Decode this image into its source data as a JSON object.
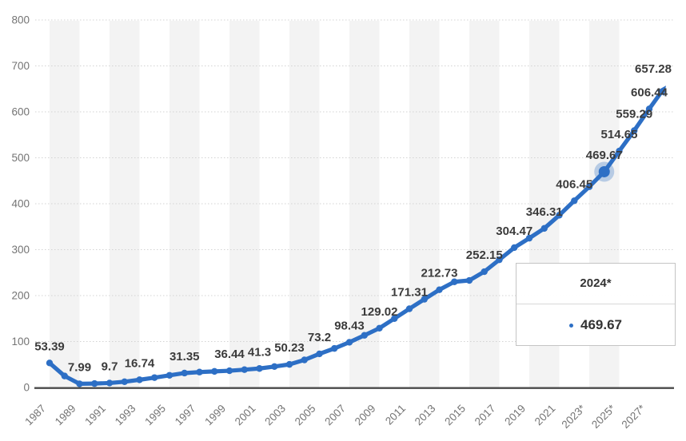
{
  "chart_data": {
    "type": "line",
    "title": "",
    "xlabel": "",
    "ylabel": "",
    "ylim": [
      0,
      800
    ],
    "y_tick_labels": [
      "0",
      "100",
      "200",
      "300",
      "400",
      "500",
      "600",
      "700",
      "800"
    ],
    "x_tick_labels": [
      "1987",
      "1989",
      "1991",
      "1993",
      "1995",
      "1997",
      "1999",
      "2001",
      "2003",
      "2005",
      "2007",
      "2009",
      "2011",
      "2013",
      "2015",
      "2017",
      "2019",
      "2021",
      "2023*",
      "2025*",
      "2027*"
    ],
    "x_tick_start_year": 1987,
    "x_tick_step": 2,
    "grid": "horizontal-dotted",
    "background_bands": true,
    "legend_position": "none",
    "series": [
      {
        "name": "value",
        "points": [
          {
            "year": 1987,
            "value": 53.39,
            "label": "53.39"
          },
          {
            "year": 1988,
            "value": 25
          },
          {
            "year": 1989,
            "value": 7.99,
            "label": "7.99"
          },
          {
            "year": 1990,
            "value": 8.5
          },
          {
            "year": 1991,
            "value": 9.7,
            "label": "9.7"
          },
          {
            "year": 1992,
            "value": 12.5
          },
          {
            "year": 1993,
            "value": 16.74,
            "label": "16.74"
          },
          {
            "year": 1994,
            "value": 21.5
          },
          {
            "year": 1995,
            "value": 26.5
          },
          {
            "year": 1996,
            "value": 31.35,
            "label": "31.35"
          },
          {
            "year": 1997,
            "value": 33.5
          },
          {
            "year": 1998,
            "value": 35
          },
          {
            "year": 1999,
            "value": 36.44,
            "label": "36.44"
          },
          {
            "year": 2000,
            "value": 38.8
          },
          {
            "year": 2001,
            "value": 41.3,
            "label": "41.3"
          },
          {
            "year": 2002,
            "value": 45.5
          },
          {
            "year": 2003,
            "value": 50.23,
            "label": "50.23"
          },
          {
            "year": 2004,
            "value": 60
          },
          {
            "year": 2005,
            "value": 73.2,
            "label": "73.2"
          },
          {
            "year": 2006,
            "value": 85
          },
          {
            "year": 2007,
            "value": 98.43,
            "label": "98.43"
          },
          {
            "year": 2008,
            "value": 113.5
          },
          {
            "year": 2009,
            "value": 129.02,
            "label": "129.02"
          },
          {
            "year": 2010,
            "value": 150
          },
          {
            "year": 2011,
            "value": 171.31,
            "label": "171.31"
          },
          {
            "year": 2012,
            "value": 192
          },
          {
            "year": 2013,
            "value": 212.73,
            "label": "212.73"
          },
          {
            "year": 2014,
            "value": 230
          },
          {
            "year": 2015,
            "value": 233
          },
          {
            "year": 2016,
            "value": 252.15,
            "label": "252.15"
          },
          {
            "year": 2017,
            "value": 278
          },
          {
            "year": 2018,
            "value": 304.47,
            "label": "304.47"
          },
          {
            "year": 2019,
            "value": 325
          },
          {
            "year": 2020,
            "value": 346.31,
            "label": "346.31"
          },
          {
            "year": 2021,
            "value": 375
          },
          {
            "year": 2022,
            "value": 406.45,
            "label": "406.45"
          },
          {
            "year": 2023,
            "value": 437
          },
          {
            "year": 2024,
            "value": 469.67,
            "label": "469.67"
          },
          {
            "year": 2025,
            "value": 514.65,
            "label": "514.65"
          },
          {
            "year": 2026,
            "value": 559.29,
            "label": "559.29"
          },
          {
            "year": 2027,
            "value": 606.44,
            "label": "606.44"
          }
        ]
      }
    ],
    "arrow_end": {
      "value": 657.28,
      "label": "657.28"
    },
    "hover": {
      "year": 2024,
      "value": 469.67
    }
  },
  "tooltip": {
    "title": "2024*",
    "value": "469.67"
  },
  "colors": {
    "line": "#2d6fc5",
    "marker": "#2d6fc5",
    "hover_halo": "rgba(45,111,197,0.3)",
    "data_label": "#3b3b3b",
    "axis_text": "#747474",
    "gridline": "#d3d3d3",
    "axis_line": "#4a4a4a",
    "band": "#f3f3f3",
    "tooltip_marker": "#2d6fc5"
  }
}
